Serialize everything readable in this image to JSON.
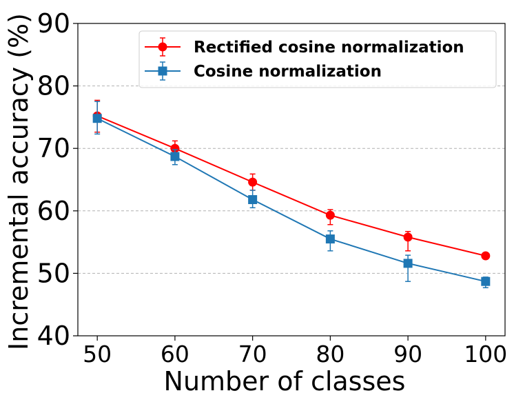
{
  "chart_data": {
    "type": "line",
    "title": "",
    "xlabel": "Number of classes",
    "ylabel": "Incremental accuracy (%)",
    "x": [
      50,
      60,
      70,
      80,
      90,
      100
    ],
    "xticks": [
      "50",
      "60",
      "70",
      "80",
      "90",
      "100"
    ],
    "xlim": [
      47.5,
      102.5
    ],
    "yticks": [
      "40",
      "50",
      "60",
      "70",
      "80",
      "90"
    ],
    "ylim": [
      40,
      90
    ],
    "grid": "horizontal dashed",
    "legend_position": "top-right",
    "series": [
      {
        "name": "Rectified cosine normalization",
        "color": "#ff0000",
        "marker": "circle",
        "values": [
          75.2,
          70.0,
          64.6,
          59.3,
          55.8,
          52.8
        ],
        "err_upper": [
          77.7,
          71.2,
          65.9,
          60.2,
          56.7,
          53.0
        ],
        "err_lower": [
          72.6,
          68.6,
          63.3,
          57.8,
          53.6,
          52.6
        ]
      },
      {
        "name": "Cosine normalization",
        "color": "#1f77b4",
        "marker": "square",
        "values": [
          74.8,
          68.7,
          61.8,
          55.5,
          51.6,
          48.7
        ],
        "err_upper": [
          77.5,
          69.8,
          63.3,
          56.8,
          52.9,
          49.4
        ],
        "err_lower": [
          72.3,
          67.4,
          60.5,
          53.6,
          48.7,
          47.7
        ]
      }
    ]
  }
}
